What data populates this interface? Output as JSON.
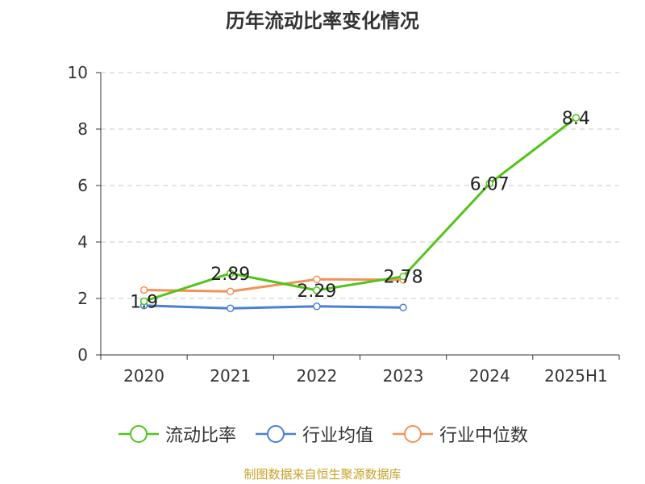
{
  "title": "历年流动比率变化情况",
  "source": "制图数据来自恒生聚源数据库",
  "colors": {
    "current_ratio": "#52c41a",
    "industry_avg": "#4a7fd6",
    "industry_median": "#f39158",
    "grid": "#c8c8c8",
    "axis": "#333333"
  },
  "chart_data": {
    "type": "line",
    "title": "历年流动比率变化情况",
    "xlabel": "",
    "ylabel": "",
    "categories": [
      "2020",
      "2021",
      "2022",
      "2023",
      "2024",
      "2025H1"
    ],
    "ylim": [
      0,
      10
    ],
    "yticks": [
      0,
      2,
      4,
      6,
      8,
      10
    ],
    "grid": true,
    "legend_position": "bottom",
    "series": [
      {
        "name": "流动比率",
        "color": "#52c41a",
        "values": [
          1.9,
          2.89,
          2.29,
          2.78,
          6.07,
          8.4
        ],
        "labels": [
          "1.9",
          "2.89",
          "2.29",
          "2.78",
          "6.07",
          "8.4"
        ]
      },
      {
        "name": "行业均值",
        "color": "#4a7fd6",
        "values": [
          1.75,
          1.65,
          1.72,
          1.68,
          null,
          null
        ]
      },
      {
        "name": "行业中位数",
        "color": "#f39158",
        "values": [
          2.3,
          2.25,
          2.68,
          2.66,
          null,
          null
        ]
      }
    ]
  }
}
